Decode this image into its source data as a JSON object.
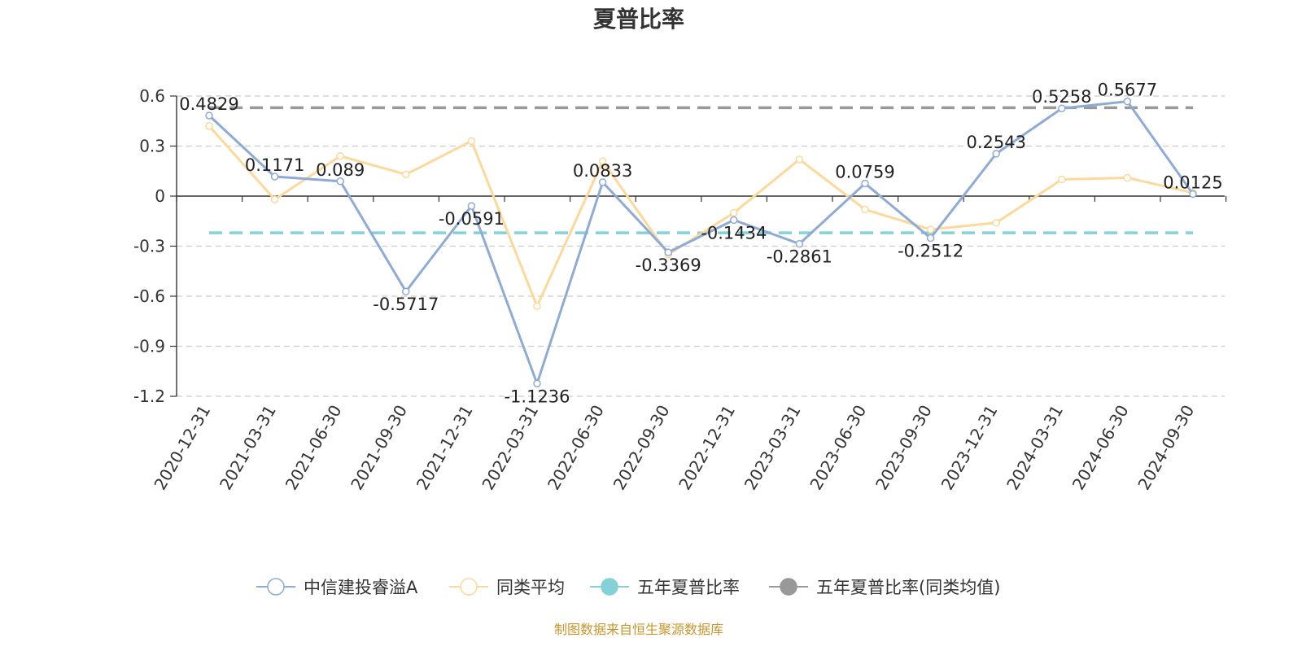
{
  "chart_data": {
    "type": "line",
    "title": "夏普比率",
    "categories": [
      "2020-12-31",
      "2021-03-31",
      "2021-06-30",
      "2021-09-30",
      "2021-12-31",
      "2022-03-31",
      "2022-06-30",
      "2022-09-30",
      "2022-12-31",
      "2023-03-31",
      "2023-06-30",
      "2023-09-30",
      "2023-12-31",
      "2024-03-31",
      "2024-06-30",
      "2024-09-30"
    ],
    "yticks": [
      "0.6",
      "0.3",
      "0",
      "-0.3",
      "-0.6",
      "-0.9",
      "-1.2"
    ],
    "ylim": [
      -1.2,
      0.6
    ],
    "grid": "horizontal dashed",
    "legend_position": "bottom",
    "series": [
      {
        "name": "中信建投睿溢A",
        "color": "#8eabd6",
        "values": [
          0.4829,
          0.1171,
          0.089,
          -0.5717,
          -0.0591,
          -1.1236,
          0.0833,
          -0.3369,
          -0.1434,
          -0.2861,
          0.0759,
          -0.2512,
          0.2543,
          0.5258,
          0.5677,
          0.0125
        ],
        "labels": [
          "0.4829",
          "0.1171",
          "0.089",
          "-0.5717",
          "-0.0591",
          "-1.1236",
          "0.0833",
          "-0.3369",
          "-0.1434",
          "-0.2861",
          "0.0759",
          "-0.2512",
          "0.2543",
          "0.5258",
          "0.5677",
          "0.0125"
        ]
      },
      {
        "name": "同类平均",
        "color": "#fcd99a",
        "values": [
          0.42,
          -0.02,
          0.24,
          0.13,
          0.33,
          -0.66,
          0.21,
          -0.35,
          -0.1,
          0.22,
          -0.08,
          -0.2,
          -0.16,
          0.1,
          0.11,
          0.02
        ]
      },
      {
        "name": "五年夏普比率",
        "color": "#84d2d8",
        "constant": -0.22
      },
      {
        "name": "五年夏普比率(同类均值)",
        "color": "#999999",
        "constant": 0.53
      }
    ]
  },
  "source_text": "制图数据来自恒生聚源数据库",
  "source_color": "#c8952c"
}
